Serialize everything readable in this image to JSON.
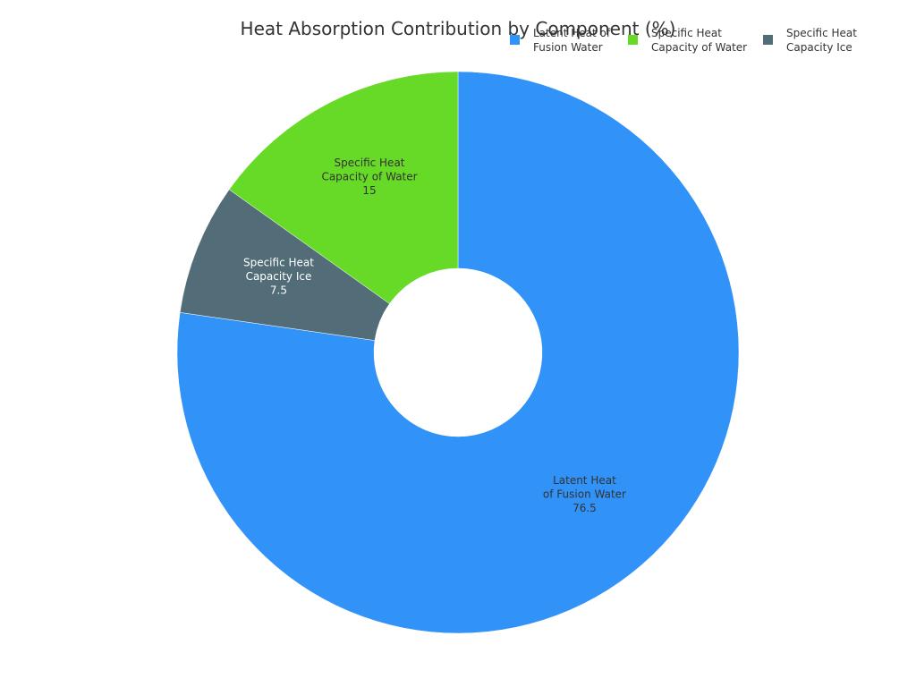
{
  "chart_data": {
    "type": "pie",
    "title": "Heat Absorption Contribution by Component (%)",
    "hole": true,
    "slices": [
      {
        "label": "Latent Heat of Fusion Water",
        "value": 76.5,
        "color": "#3193F8"
      },
      {
        "label": "Specific Heat Capacity Ice",
        "value": 7.5,
        "color": "#536D78"
      },
      {
        "label": "Specific Heat Capacity of Water",
        "value": 15,
        "color": "#66DA26"
      }
    ],
    "legend": {
      "placement": "top-right",
      "entries": [
        {
          "label": "Latent Heat of Fusion Water",
          "color": "#3193F8"
        },
        {
          "label": "Specific Heat Capacity of Water",
          "color": "#66DA26"
        },
        {
          "label": "Specific Heat Capacity Ice",
          "color": "#536D78"
        }
      ]
    }
  }
}
